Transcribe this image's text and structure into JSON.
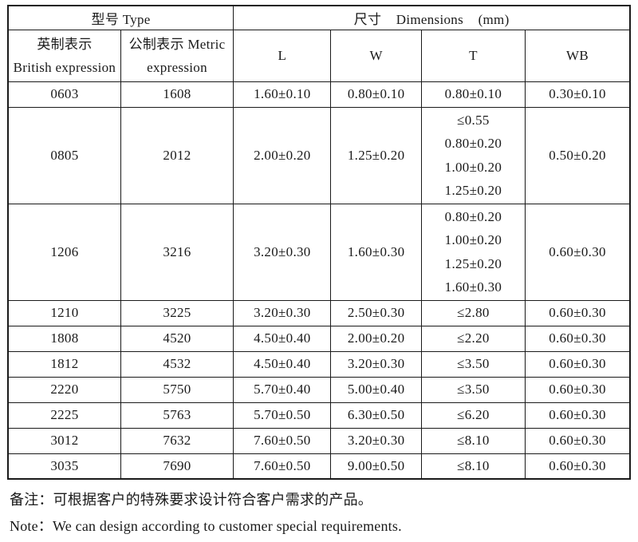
{
  "table": {
    "header": {
      "type_group": "型号 Type",
      "dimensions_group": "尺寸 Dimensions (mm)",
      "col_british_line1": "英制表示",
      "col_british_line2": "British expression",
      "col_metric_line1": "公制表示 Metric",
      "col_metric_line2": "expression",
      "col_l": "L",
      "col_w": "W",
      "col_t": "T",
      "col_wb": "WB"
    },
    "rows": [
      {
        "british": "0603",
        "metric": "1608",
        "l": "1.60±0.10",
        "w": "0.80±0.10",
        "t": "0.80±0.10",
        "wb": "0.30±0.10"
      },
      {
        "british": "0805",
        "metric": "2012",
        "l": "2.00±0.20",
        "w": "1.25±0.20",
        "t": [
          "≤0.55",
          "0.80±0.20",
          "1.00±0.20",
          "1.25±0.20"
        ],
        "wb": "0.50±0.20"
      },
      {
        "british": "1206",
        "metric": "3216",
        "l": "3.20±0.30",
        "w": "1.60±0.30",
        "t": [
          "0.80±0.20",
          "1.00±0.20",
          "1.25±0.20",
          "1.60±0.30"
        ],
        "wb": "0.60±0.30"
      },
      {
        "british": "1210",
        "metric": "3225",
        "l": "3.20±0.30",
        "w": "2.50±0.30",
        "t": "≤2.80",
        "wb": "0.60±0.30"
      },
      {
        "british": "1808",
        "metric": "4520",
        "l": "4.50±0.40",
        "w": "2.00±0.20",
        "t": "≤2.20",
        "wb": "0.60±0.30"
      },
      {
        "british": "1812",
        "metric": "4532",
        "l": "4.50±0.40",
        "w": "3.20±0.30",
        "t": "≤3.50",
        "wb": "0.60±0.30"
      },
      {
        "british": "2220",
        "metric": "5750",
        "l": "5.70±0.40",
        "w": "5.00±0.40",
        "t": "≤3.50",
        "wb": "0.60±0.30"
      },
      {
        "british": "2225",
        "metric": "5763",
        "l": "5.70±0.50",
        "w": "6.30±0.50",
        "t": "≤6.20",
        "wb": "0.60±0.30"
      },
      {
        "british": "3012",
        "metric": "7632",
        "l": "7.60±0.50",
        "w": "3.20±0.30",
        "t": "≤8.10",
        "wb": "0.60±0.30"
      },
      {
        "british": "3035",
        "metric": "7690",
        "l": "7.60±0.50",
        "w": "9.00±0.50",
        "t": "≤8.10",
        "wb": "0.60±0.30"
      }
    ]
  },
  "notes": {
    "chinese": "备注：可根据客户的特殊要求设计符合客户需求的产品。",
    "english": "Note：We can design according to customer special requirements."
  }
}
